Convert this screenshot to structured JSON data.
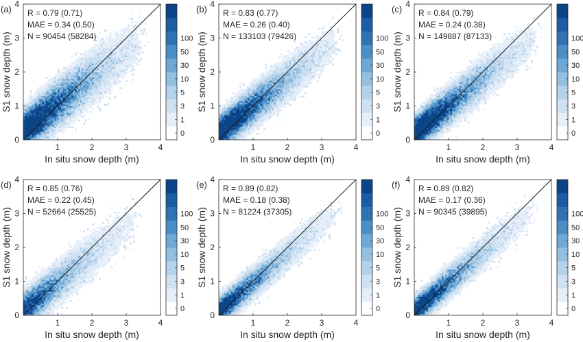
{
  "figure": {
    "colorbar_colors": [
      "#ffffff",
      "#e6eff9",
      "#cfe0f1",
      "#b5d2eb",
      "#93c0e0",
      "#6fa8d5",
      "#4b8fc7",
      "#2f73b5",
      "#1b5da4",
      "#0b4588"
    ],
    "colorbar_ticks": [
      "0",
      "1",
      "3",
      "5",
      "10",
      "30",
      "50",
      "100"
    ],
    "scatter_color": "#2171b5",
    "one_to_one_line_color": "#1a1a1a"
  },
  "chart_data": [
    {
      "type": "heatmap",
      "panel_label": "(a)",
      "stats": {
        "r": "R = 0.79 (0.71)",
        "mae": "MAE = 0.34 (0.50)",
        "n": "N = 90454 (58284)"
      },
      "xlabel": "In situ snow depth (m)",
      "ylabel": "S1 snow depth (m)",
      "xlim": [
        0,
        4
      ],
      "ylim": [
        0,
        4
      ],
      "xticks": [
        "1",
        "2",
        "3",
        "4"
      ],
      "yticks": [
        "0",
        "1",
        "2",
        "3",
        "4"
      ],
      "one_to_one_line": true,
      "density": {
        "slope": 0.78,
        "intercept": 0.28,
        "spread": 0.62,
        "center_x": 0.45,
        "extent_x": 3.3,
        "peak": 2.0
      }
    },
    {
      "type": "heatmap",
      "panel_label": "(b)",
      "stats": {
        "r": "R = 0.83 (0.77)",
        "mae": "MAE = 0.26 (0.40)",
        "n": "N = 133103 (79426)"
      },
      "xlabel": "In situ snow depth (m)",
      "ylabel": "S1 snow depth (m)",
      "xlim": [
        0,
        4
      ],
      "ylim": [
        0,
        4
      ],
      "xticks": [
        "1",
        "2",
        "3",
        "4"
      ],
      "yticks": [
        "0",
        "1",
        "2",
        "3",
        "4"
      ],
      "one_to_one_line": true,
      "density": {
        "slope": 0.78,
        "intercept": 0.22,
        "spread": 0.52,
        "center_x": 0.3,
        "extent_x": 3.3,
        "peak": 2.2
      }
    },
    {
      "type": "heatmap",
      "panel_label": "(c)",
      "stats": {
        "r": "R = 0.84 (0.79)",
        "mae": "MAE = 0.24 (0.38)",
        "n": "N = 149887 (87133)"
      },
      "xlabel": "In situ snow depth (m)",
      "ylabel": "S1 snow depth (m)",
      "xlim": [
        0,
        4
      ],
      "ylim": [
        0,
        4
      ],
      "xticks": [
        "1",
        "2",
        "3",
        "4"
      ],
      "yticks": [
        "0",
        "1",
        "2",
        "3",
        "4"
      ],
      "one_to_one_line": true,
      "density": {
        "slope": 0.8,
        "intercept": 0.2,
        "spread": 0.5,
        "center_x": 0.3,
        "extent_x": 3.4,
        "peak": 2.3
      }
    },
    {
      "type": "heatmap",
      "panel_label": "(d)",
      "stats": {
        "r": "R = 0.85 (0.76)",
        "mae": "MAE = 0.22 (0.45)",
        "n": "N = 52664 (25525)"
      },
      "xlabel": "In situ snow depth (m)",
      "ylabel": "S1 snow depth (m)",
      "xlim": [
        0,
        4
      ],
      "ylim": [
        0,
        4
      ],
      "xticks": [
        "1",
        "2",
        "3",
        "4"
      ],
      "yticks": [
        "0",
        "1",
        "2",
        "3",
        "4"
      ],
      "one_to_one_line": true,
      "density": {
        "slope": 0.82,
        "intercept": 0.15,
        "spread": 0.55,
        "center_x": 0.25,
        "extent_x": 3.2,
        "peak": 1.5
      }
    },
    {
      "type": "heatmap",
      "panel_label": "(e)",
      "stats": {
        "r": "R = 0.89 (0.82)",
        "mae": "MAE = 0.18 (0.38)",
        "n": "N = 81224 (37305)"
      },
      "xlabel": "In situ snow depth (m)",
      "ylabel": "S1 snow depth (m)",
      "xlim": [
        0,
        4
      ],
      "ylim": [
        0,
        4
      ],
      "xticks": [
        "1",
        "2",
        "3",
        "4"
      ],
      "yticks": [
        "0",
        "1",
        "2",
        "3",
        "4"
      ],
      "one_to_one_line": true,
      "density": {
        "slope": 0.85,
        "intercept": 0.12,
        "spread": 0.42,
        "center_x": 0.2,
        "extent_x": 3.3,
        "peak": 1.9
      }
    },
    {
      "type": "heatmap",
      "panel_label": "(f)",
      "stats": {
        "r": "R = 0.89 (0.82)",
        "mae": "MAE = 0.17 (0.36)",
        "n": "N = 90345 (39895)"
      },
      "xlabel": "In situ snow depth (m)",
      "ylabel": "S1 snow depth (m)",
      "xlim": [
        0,
        4
      ],
      "ylim": [
        0,
        4
      ],
      "xticks": [
        "1",
        "2",
        "3",
        "4"
      ],
      "yticks": [
        "0",
        "1",
        "2",
        "3",
        "4"
      ],
      "one_to_one_line": true,
      "density": {
        "slope": 0.86,
        "intercept": 0.12,
        "spread": 0.42,
        "center_x": 0.2,
        "extent_x": 3.3,
        "peak": 2.0
      }
    }
  ]
}
